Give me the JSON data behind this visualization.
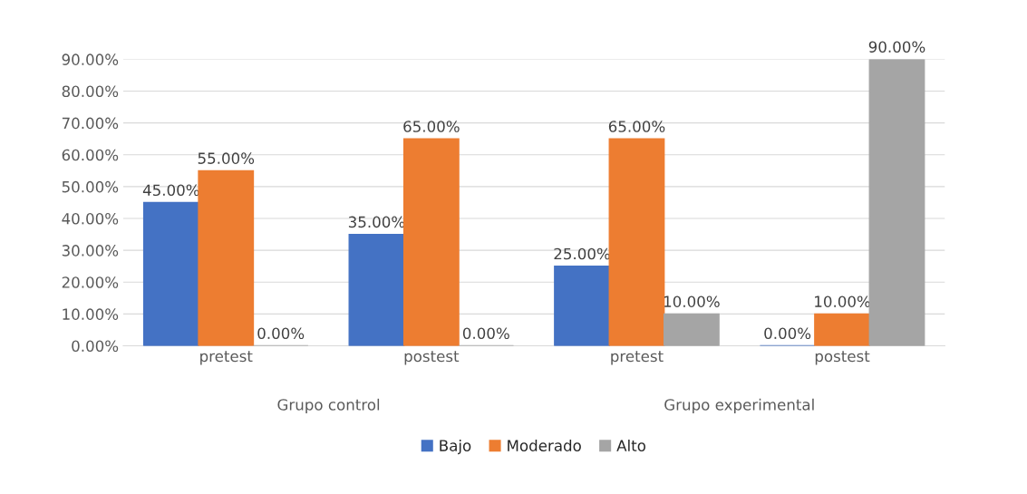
{
  "chart_data": {
    "type": "bar",
    "categories": [
      "pretest",
      "postest",
      "pretest",
      "postest"
    ],
    "series": [
      {
        "name": "Bajo",
        "color": "#4472c4",
        "values": [
          45,
          35,
          25,
          0
        ],
        "value_labels": [
          "45.00%",
          "35.00%",
          "25.00%",
          "0.00%"
        ]
      },
      {
        "name": "Moderado",
        "color": "#ed7d31",
        "values": [
          55,
          65,
          65,
          10
        ],
        "value_labels": [
          "55.00%",
          "65.00%",
          "65.00%",
          "10.00%"
        ]
      },
      {
        "name": "Alto",
        "color": "#a5a5a5",
        "values": [
          0,
          0,
          10,
          90
        ],
        "value_labels": [
          "0.00%",
          "0.00%",
          "10.00%",
          "90.00%"
        ]
      }
    ],
    "annotations": [
      "Grupo control",
      "Grupo experimental"
    ],
    "ylim": [
      0,
      90
    ],
    "yticks": [
      {
        "value": 0,
        "label": "0.00%"
      },
      {
        "value": 10,
        "label": "10.00%"
      },
      {
        "value": 20,
        "label": "20.00%"
      },
      {
        "value": 30,
        "label": "30.00%"
      },
      {
        "value": 40,
        "label": "40.00%"
      },
      {
        "value": 50,
        "label": "50.00%"
      },
      {
        "value": 60,
        "label": "60.00%"
      },
      {
        "value": 70,
        "label": "70.00%"
      },
      {
        "value": 80,
        "label": "80.00%"
      },
      {
        "value": 90,
        "label": "90.00%"
      }
    ],
    "grid": "y",
    "legend": "bottom"
  }
}
